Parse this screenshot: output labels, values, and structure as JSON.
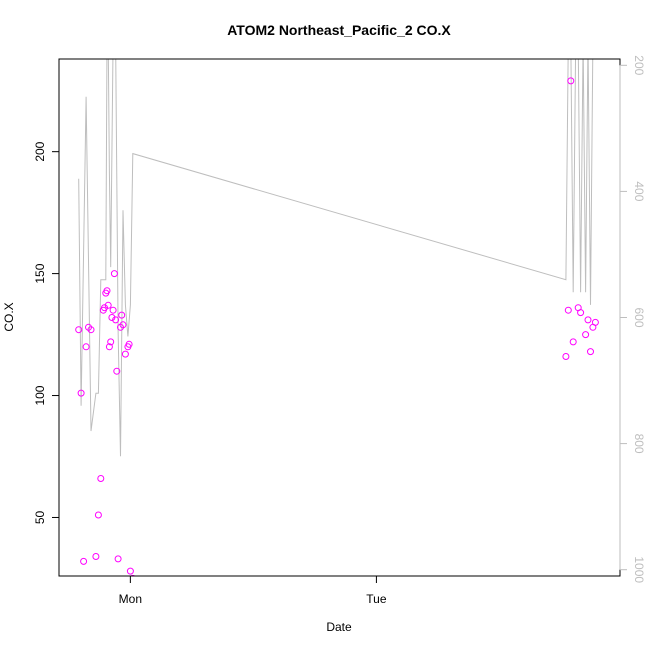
{
  "chart_data": {
    "type": "scatter",
    "title": "ATOM2 Northeast_Pacific_2 CO.X",
    "xlabel": "Date",
    "ylabel": "CO.X",
    "x_unit": "days since Sun 00:00",
    "xlim": [
      0.71,
      2.99
    ],
    "ylim": [
      26,
      238
    ],
    "right_axis_ylim_reversed": [
      1010,
      190
    ],
    "x_ticks": [
      {
        "value": 1.0,
        "label": "Mon"
      },
      {
        "value": 2.0,
        "label": "Tue"
      }
    ],
    "y_ticks": [
      50,
      100,
      150,
      200
    ],
    "right_ticks": [
      200,
      400,
      600,
      800,
      1000
    ],
    "colors": {
      "points": "#ff00ff",
      "line": "#bebebe",
      "right_axis": "#bebebe"
    },
    "series": [
      {
        "kind": "points",
        "x": [
          0.79,
          0.8,
          0.81,
          0.82,
          0.83,
          0.84,
          0.86,
          0.87,
          0.88,
          0.89,
          0.895,
          0.9,
          0.905,
          0.91,
          0.915,
          0.92,
          0.925,
          0.93,
          0.935,
          0.94,
          0.945,
          0.95,
          0.96,
          0.965,
          0.97,
          0.98,
          0.99,
          0.995,
          1.0,
          1.01,
          2.77,
          2.78,
          2.79,
          2.8,
          2.82,
          2.83,
          2.85,
          2.86,
          2.87,
          2.88,
          2.89
        ],
        "y": [
          127,
          101,
          32,
          120,
          128,
          127,
          34,
          51,
          66,
          135,
          136,
          142,
          143,
          137,
          120,
          122,
          132,
          135,
          150,
          131,
          110,
          33,
          128,
          133,
          129,
          117,
          120,
          121,
          28,
          25,
          116,
          135,
          229,
          122,
          136,
          134,
          125,
          131,
          118,
          128,
          130
        ]
      },
      {
        "kind": "line",
        "x": [
          0.79,
          0.8,
          0.82,
          0.84,
          0.86,
          0.87,
          0.88,
          0.885,
          0.89,
          0.9,
          0.905,
          0.91,
          0.915,
          0.92,
          0.93,
          0.94,
          0.95,
          0.96,
          0.97,
          0.98,
          0.99,
          1.0,
          1.01,
          2.77,
          2.78,
          2.79,
          2.8,
          2.81,
          2.82,
          2.83,
          2.84,
          2.85,
          2.86,
          2.87,
          2.88,
          2.89
        ],
        "y": [
          380,
          740,
          250,
          780,
          720,
          720,
          540,
          540,
          540,
          540,
          160,
          160,
          370,
          520,
          160,
          160,
          620,
          820,
          430,
          580,
          630,
          580,
          340,
          540,
          160,
          160,
          560,
          160,
          160,
          560,
          160,
          560,
          160,
          580,
          160,
          160
        ]
      }
    ]
  }
}
